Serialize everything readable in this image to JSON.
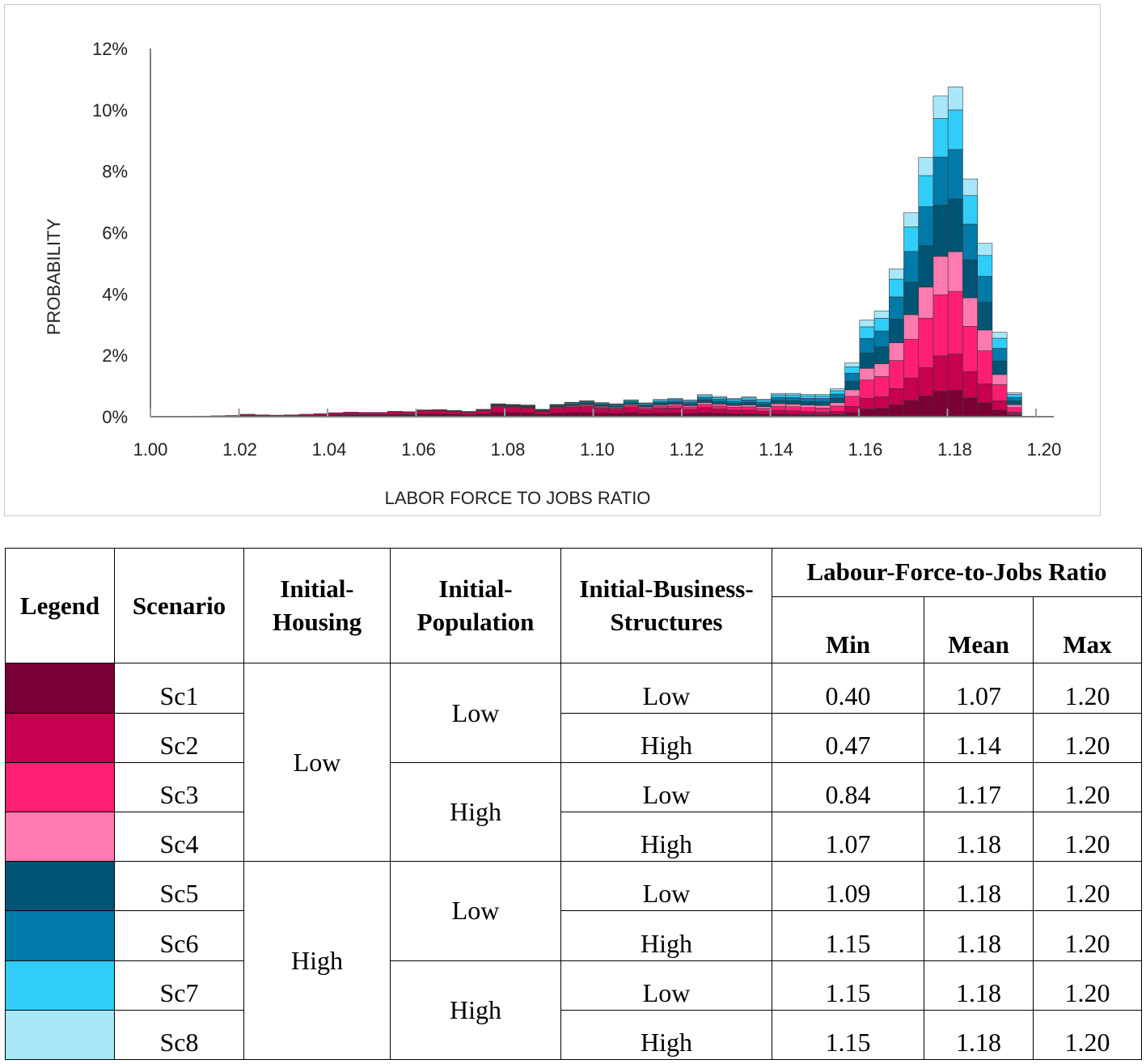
{
  "chart_data": {
    "type": "bar",
    "stacked": true,
    "xlabel": "LABOR FORCE TO JOBS RATIO",
    "ylabel": "PROBABILITY",
    "xlim": [
      1.0,
      1.2
    ],
    "ylim": [
      0,
      12
    ],
    "bin_width": 0.0033,
    "x_ticks": [
      "1.00",
      "1.02",
      "1.04",
      "1.06",
      "1.08",
      "1.10",
      "1.12",
      "1.14",
      "1.16",
      "1.18",
      "1.20"
    ],
    "y_ticks": [
      "0%",
      "2%",
      "4%",
      "6%",
      "8%",
      "10%",
      "12%"
    ],
    "series_names": [
      "Sc1",
      "Sc2",
      "Sc3",
      "Sc4",
      "Sc5",
      "Sc6",
      "Sc7",
      "Sc8"
    ],
    "series_colors": [
      "#7a0035",
      "#c7004f",
      "#ff1f72",
      "#ff7ab0",
      "#005474",
      "#007aa8",
      "#2fcdf8",
      "#a8e6fa"
    ],
    "bins_x": [
      1.0102,
      1.0135,
      1.0168,
      1.0201,
      1.0234,
      1.0267,
      1.03,
      1.0333,
      1.0366,
      1.0399,
      1.0432,
      1.0465,
      1.0498,
      1.0531,
      1.0564,
      1.0597,
      1.063,
      1.0663,
      1.0696,
      1.0729,
      1.0762,
      1.0795,
      1.0828,
      1.0861,
      1.0894,
      1.0927,
      1.096,
      1.0993,
      1.1026,
      1.1059,
      1.1092,
      1.1125,
      1.1158,
      1.1191,
      1.1224,
      1.1257,
      1.129,
      1.1323,
      1.1356,
      1.1389,
      1.1422,
      1.1455,
      1.1488,
      1.1521,
      1.1554,
      1.1587,
      1.162,
      1.1653,
      1.1686,
      1.1719,
      1.1752,
      1.1785,
      1.1818,
      1.1851,
      1.1884,
      1.1917,
      1.195
    ],
    "totals": [
      0.02,
      0.03,
      0.04,
      0.08,
      0.06,
      0.05,
      0.06,
      0.08,
      0.1,
      0.13,
      0.15,
      0.14,
      0.14,
      0.17,
      0.16,
      0.22,
      0.23,
      0.2,
      0.17,
      0.24,
      0.42,
      0.4,
      0.38,
      0.24,
      0.4,
      0.47,
      0.52,
      0.46,
      0.42,
      0.55,
      0.45,
      0.56,
      0.6,
      0.55,
      0.72,
      0.66,
      0.6,
      0.65,
      0.57,
      0.76,
      0.76,
      0.73,
      0.73,
      0.91,
      1.75,
      3.15,
      3.45,
      4.82,
      6.65,
      8.45,
      10.45,
      10.75,
      7.75,
      5.65,
      2.75,
      0.78,
      0
    ],
    "composition": {
      "early": [
        0.45,
        0.55,
        0,
        0,
        0,
        0,
        0,
        0
      ],
      "tail": [
        0.08,
        0.11,
        0.19,
        0.12,
        0.16,
        0.15,
        0.12,
        0.07
      ]
    }
  },
  "table": {
    "headers": {
      "legend": "Legend",
      "scenario": "Scenario",
      "housing": "Initial-Housing",
      "population": "Initial-Population",
      "business": "Initial-Business-Structures",
      "ratio_group": "Labour-Force-to-Jobs Ratio",
      "min": "Min",
      "mean": "Mean",
      "max": "Max"
    },
    "housing_groups": [
      "Low",
      "High"
    ],
    "population_groups": [
      "Low",
      "High",
      "Low",
      "High"
    ],
    "rows": [
      {
        "scenario": "Sc1",
        "color": "#7a0035",
        "business": "Low",
        "min": "0.40",
        "mean": "1.07",
        "max": "1.20"
      },
      {
        "scenario": "Sc2",
        "color": "#c7004f",
        "business": "High",
        "min": "0.47",
        "mean": "1.14",
        "max": "1.20"
      },
      {
        "scenario": "Sc3",
        "color": "#ff1f72",
        "business": "Low",
        "min": "0.84",
        "mean": "1.17",
        "max": "1.20"
      },
      {
        "scenario": "Sc4",
        "color": "#ff7ab0",
        "business": "High",
        "min": "1.07",
        "mean": "1.18",
        "max": "1.20"
      },
      {
        "scenario": "Sc5",
        "color": "#005474",
        "business": "Low",
        "min": "1.09",
        "mean": "1.18",
        "max": "1.20"
      },
      {
        "scenario": "Sc6",
        "color": "#007aa8",
        "business": "High",
        "min": "1.15",
        "mean": "1.18",
        "max": "1.20"
      },
      {
        "scenario": "Sc7",
        "color": "#2fcdf8",
        "business": "Low",
        "min": "1.15",
        "mean": "1.18",
        "max": "1.20"
      },
      {
        "scenario": "Sc8",
        "color": "#a8e6fa",
        "business": "High",
        "min": "1.15",
        "mean": "1.18",
        "max": "1.20"
      }
    ]
  }
}
